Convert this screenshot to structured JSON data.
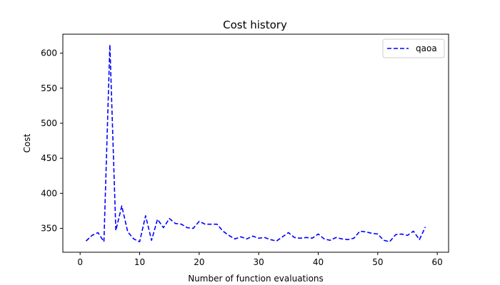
{
  "chart_data": {
    "type": "line",
    "title": "Cost history",
    "xlabel": "Number of function evaluations",
    "ylabel": "Cost",
    "xlim": [
      -2.9,
      61.9
    ],
    "ylim": [
      316,
      627
    ],
    "xticks": [
      0,
      10,
      20,
      30,
      40,
      50,
      60
    ],
    "yticks": [
      350,
      400,
      450,
      500,
      550,
      600
    ],
    "grid": false,
    "legend_position": "top-right",
    "line_style": "dashed",
    "series": [
      {
        "name": "qaoa",
        "color": "#0000ff",
        "x": [
          1,
          2,
          3,
          4,
          5,
          6,
          7,
          8,
          9,
          10,
          11,
          12,
          13,
          14,
          15,
          16,
          17,
          18,
          19,
          20,
          21,
          22,
          23,
          24,
          25,
          26,
          27,
          28,
          29,
          30,
          31,
          32,
          33,
          34,
          35,
          36,
          37,
          38,
          39,
          40,
          41,
          42,
          43,
          44,
          45,
          46,
          47,
          48,
          49,
          50,
          51,
          52,
          53,
          54,
          55,
          56,
          57,
          58
        ],
        "y": [
          332,
          340,
          344,
          331,
          612,
          347,
          382,
          345,
          335,
          331,
          368,
          333,
          363,
          351,
          364,
          357,
          356,
          351,
          350,
          360,
          356,
          356,
          356,
          346,
          340,
          335,
          338,
          335,
          339,
          336,
          337,
          334,
          332,
          338,
          344,
          337,
          336,
          337,
          336,
          342,
          335,
          333,
          337,
          335,
          334,
          336,
          346,
          345,
          343,
          342,
          333,
          331,
          341,
          342,
          340,
          346,
          334,
          352
        ]
      }
    ]
  }
}
